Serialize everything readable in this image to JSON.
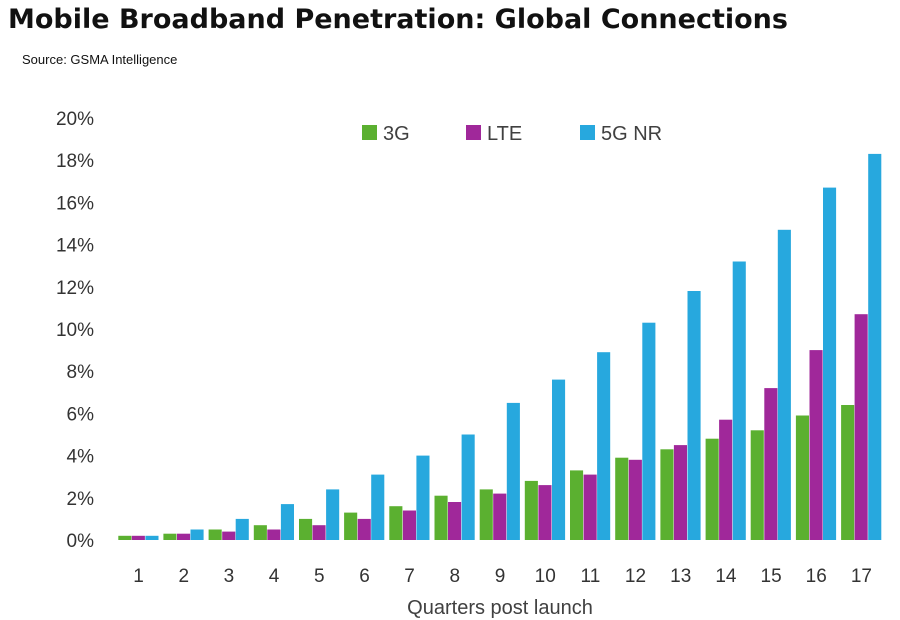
{
  "header": {
    "title": "Mobile Broadband Penetration: Global Connections",
    "source": "Source: GSMA Intelligence"
  },
  "chart_data": {
    "type": "bar",
    "categories": [
      "1",
      "2",
      "3",
      "4",
      "5",
      "6",
      "7",
      "8",
      "9",
      "10",
      "11",
      "12",
      "13",
      "14",
      "15",
      "16",
      "17"
    ],
    "series": [
      {
        "name": "3G",
        "color": "#5BB030",
        "values": [
          0.2,
          0.3,
          0.5,
          0.7,
          1.0,
          1.3,
          1.6,
          2.1,
          2.4,
          2.8,
          3.3,
          3.9,
          4.3,
          4.8,
          5.2,
          5.9,
          6.4
        ]
      },
      {
        "name": "LTE",
        "color": "#A0289A",
        "values": [
          0.2,
          0.3,
          0.4,
          0.5,
          0.7,
          1.0,
          1.4,
          1.8,
          2.2,
          2.6,
          3.1,
          3.8,
          4.5,
          5.7,
          7.2,
          9.0,
          10.7
        ]
      },
      {
        "name": "5G NR",
        "color": "#27A8DE",
        "values": [
          0.2,
          0.5,
          1.0,
          1.7,
          2.4,
          3.1,
          4.0,
          5.0,
          6.5,
          7.6,
          8.9,
          10.3,
          11.8,
          13.2,
          14.7,
          16.7,
          18.3
        ]
      }
    ],
    "xlabel": "Quarters post launch",
    "ylabel": "",
    "ylim": [
      0,
      20
    ],
    "yticks": [
      "0%",
      "2%",
      "4%",
      "6%",
      "8%",
      "10%",
      "12%",
      "14%",
      "16%",
      "18%",
      "20%"
    ],
    "grid": false,
    "legend": "top"
  }
}
